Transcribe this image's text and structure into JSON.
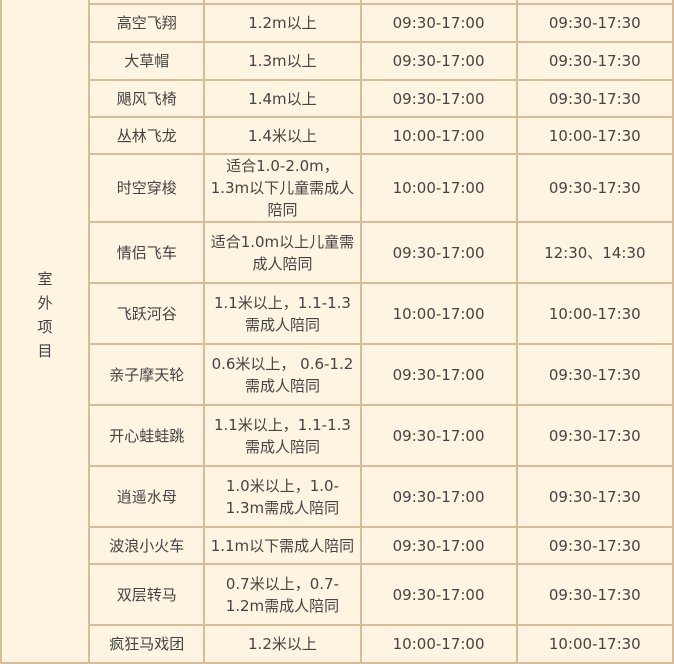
{
  "category": "室外项目",
  "category_chars": [
    "室",
    "外",
    "项",
    "目"
  ],
  "rows": [
    {
      "name": "",
      "req": "",
      "time1": "",
      "time2": ""
    },
    {
      "name": "高空飞翔",
      "req": "1.2m以上",
      "time1": "09:30-17:00",
      "time2": "09:30-17:30"
    },
    {
      "name": "大草帽",
      "req": "1.3m以上",
      "time1": "09:30-17:00",
      "time2": "09:30-17:30"
    },
    {
      "name": "飓风飞椅",
      "req": "1.4m以上",
      "time1": "09:30-17:00",
      "time2": "09:30-17:30"
    },
    {
      "name": "丛林飞龙",
      "req": "1.4米以上",
      "time1": "10:00-17:00",
      "time2": "10:00-17:30"
    },
    {
      "name": "时空穿梭",
      "req": "适合1.0-2.0m，1.3m以下儿童需成人陪同",
      "time1": "10:00-17:00",
      "time2": "09:30-17:30"
    },
    {
      "name": "情侣飞车",
      "req": "适合1.0m以上儿童需成人陪同",
      "time1": "09:30-17:00",
      "time2": "12:30、14:30"
    },
    {
      "name": "飞跃河谷",
      "req": "1.1米以上，1.1-1.3需成人陪同",
      "time1": "10:00-17:00",
      "time2": "10:00-17:30"
    },
    {
      "name": "亲子摩天轮",
      "req": "0.6米以上， 0.6-1.2需成人陪同",
      "time1": "09:30-17:00",
      "time2": "09:30-17:30"
    },
    {
      "name": "开心蛙蛙跳",
      "req": "1.1米以上，1.1-1.3需成人陪同",
      "time1": "09:30-17:00",
      "time2": "09:30-17:30"
    },
    {
      "name": "逍遥水母",
      "req": "1.0米以上，1.0-1.3m需成人陪同",
      "time1": "09:30-17:00",
      "time2": "09:30-17:30"
    },
    {
      "name": "波浪小火车",
      "req": "1.1m以下需成人陪同",
      "time1": "09:30-17:00",
      "time2": "09:30-17:30"
    },
    {
      "name": "双层转马",
      "req": "0.7米以上，0.7-1.2m需成人陪同",
      "time1": "09:30-17:00",
      "time2": "09:30-17:30"
    },
    {
      "name": "疯狂马戏团",
      "req": "1.2米以上",
      "time1": "10:00-17:00",
      "time2": "10:00-17:30"
    }
  ]
}
